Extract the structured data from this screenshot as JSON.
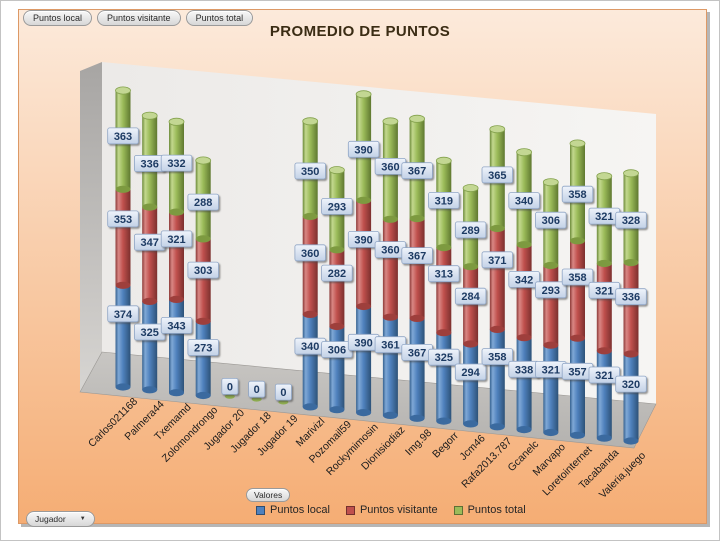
{
  "chart_data": {
    "type": "bar",
    "subtype": "stacked-cylinder-3d",
    "title": "PROMEDIO DE PUNTOS",
    "categories": [
      "Carlos021168",
      "Palmera44",
      "Txemamd",
      "Zolomondrongo",
      "Jugador 20",
      "Jugador 18",
      "Jugador 19",
      "Marivizl",
      "Pozomail59",
      "Rockymimosin",
      "Dionisiodiaz",
      "Img.98",
      "Begorr",
      "Jcm46",
      "Rafa2013.787",
      "Gcanelc",
      "Marvapo",
      "Loretointernet",
      "Tacabanda",
      "Valeria.juego"
    ],
    "series": [
      {
        "name": "Puntos local",
        "color": "#4F81BD",
        "values": [
          374,
          325,
          343,
          273,
          0,
          0,
          0,
          340,
          306,
          390,
          361,
          367,
          325,
          294,
          358,
          338,
          321,
          357,
          321,
          320
        ]
      },
      {
        "name": "Puntos visitante",
        "color": "#C0504D",
        "values": [
          353,
          347,
          321,
          303,
          0,
          0,
          0,
          360,
          282,
          390,
          360,
          367,
          313,
          284,
          371,
          342,
          293,
          358,
          321,
          336
        ]
      },
      {
        "name": "Puntos total",
        "color": "#9BBB59",
        "values": [
          363,
          336,
          332,
          288,
          0,
          0,
          0,
          350,
          293,
          390,
          360,
          367,
          319,
          289,
          365,
          340,
          306,
          358,
          321,
          328
        ]
      }
    ],
    "data_labels_shown": true,
    "value_axis_visible": false,
    "legend_position": "bottom"
  },
  "controls": {
    "value_field_buttons": [
      "Puntos local",
      "Puntos visitante",
      "Puntos total"
    ],
    "values_button": "Valores",
    "axis_field_button": "Jugador"
  },
  "palette": {
    "chart_bg_top": "#fceadb",
    "chart_bg_bottom": "#f5ad74",
    "chart_border": "#dd9966",
    "title": "#3b2c14",
    "label_box_border": "#8fa5c5",
    "label_text": "#1f3a63"
  }
}
